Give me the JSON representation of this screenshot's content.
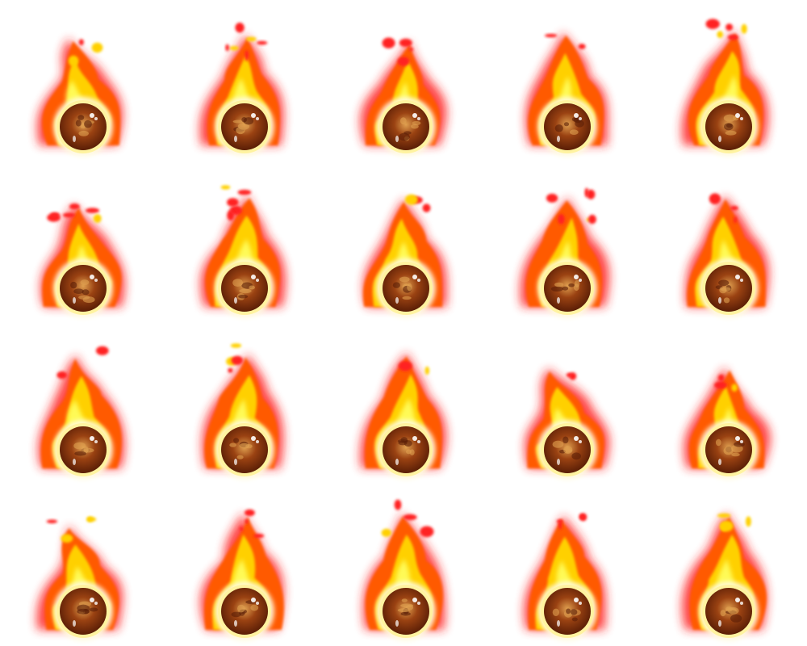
{
  "sprite_sheet": {
    "name": "fireball-animation",
    "columns": 5,
    "rows": 4,
    "frame_count": 20,
    "background": "#ffffff",
    "colors": {
      "outer_glow": "#ff2020",
      "mid_flame": "#ff5a00",
      "inner_flame": "#ffd000",
      "core_flame": "#ffff60",
      "hot_white": "#fffbe0",
      "orb_ring": "#fff3a0",
      "orb_dark": "#5a1e06",
      "orb_mid": "#9a4212",
      "orb_light": "#e0a050",
      "highlight": "#ffffff"
    },
    "frames": [
      {
        "id": 1,
        "seed": 11,
        "lean": -4,
        "height": 0.92
      },
      {
        "id": 2,
        "seed": 23,
        "lean": 2,
        "height": 0.95
      },
      {
        "id": 3,
        "seed": 37,
        "lean": 3,
        "height": 0.9
      },
      {
        "id": 4,
        "seed": 41,
        "lean": 0,
        "height": 0.97
      },
      {
        "id": 5,
        "seed": 53,
        "lean": 4,
        "height": 0.99
      },
      {
        "id": 6,
        "seed": 61,
        "lean": -2,
        "height": 0.88
      },
      {
        "id": 7,
        "seed": 71,
        "lean": 3,
        "height": 0.96
      },
      {
        "id": 8,
        "seed": 83,
        "lean": 1,
        "height": 0.93
      },
      {
        "id": 9,
        "seed": 97,
        "lean": 2,
        "height": 0.94
      },
      {
        "id": 10,
        "seed": 101,
        "lean": 0,
        "height": 0.95
      },
      {
        "id": 11,
        "seed": 113,
        "lean": -1,
        "height": 0.97
      },
      {
        "id": 12,
        "seed": 127,
        "lean": 3,
        "height": 0.98
      },
      {
        "id": 13,
        "seed": 131,
        "lean": 2,
        "height": 0.99
      },
      {
        "id": 14,
        "seed": 149,
        "lean": -6,
        "height": 0.86
      },
      {
        "id": 15,
        "seed": 157,
        "lean": 0,
        "height": 0.87
      },
      {
        "id": 16,
        "seed": 163,
        "lean": -4,
        "height": 0.9
      },
      {
        "id": 17,
        "seed": 173,
        "lean": 1,
        "height": 1.0
      },
      {
        "id": 18,
        "seed": 181,
        "lean": 0,
        "height": 1.0
      },
      {
        "id": 19,
        "seed": 191,
        "lean": 0,
        "height": 0.98
      },
      {
        "id": 20,
        "seed": 199,
        "lean": 1,
        "height": 1.0
      }
    ]
  }
}
